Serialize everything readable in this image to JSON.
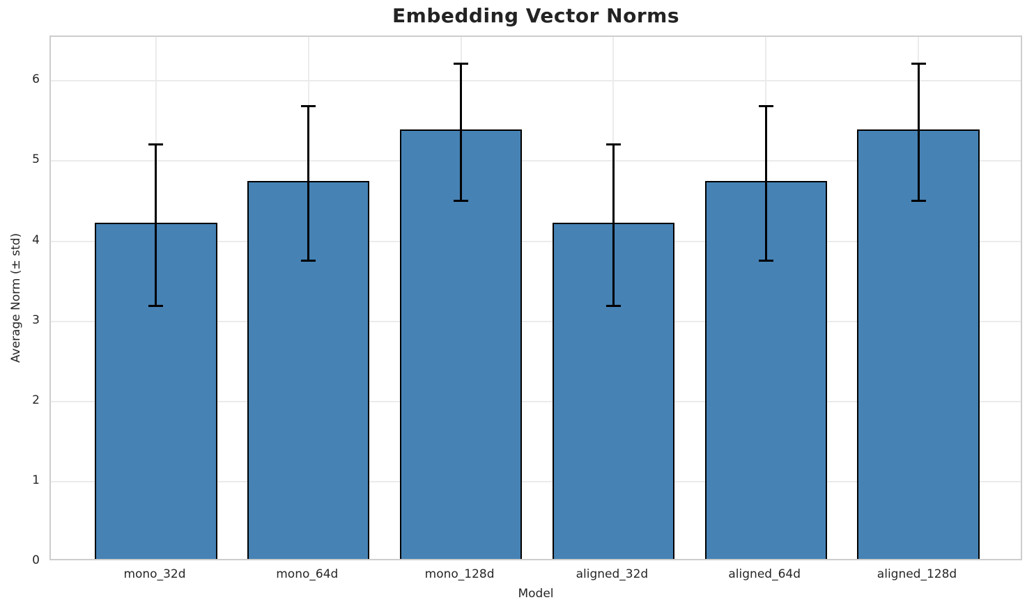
{
  "chart_data": {
    "type": "bar",
    "title": "Embedding Vector Norms",
    "xlabel": "Model",
    "ylabel": "Average Norm (± std)",
    "categories": [
      "mono_32d",
      "mono_64d",
      "mono_128d",
      "aligned_32d",
      "aligned_64d",
      "aligned_128d"
    ],
    "series": [
      {
        "name": "Average Norm",
        "values": [
          4.2,
          4.72,
          5.36,
          4.2,
          4.72,
          5.36
        ],
        "errors": [
          1.02,
          0.98,
          0.87,
          1.02,
          0.98,
          0.87
        ]
      }
    ],
    "yticks": [
      0,
      1,
      2,
      3,
      4,
      5,
      6
    ],
    "ylim": [
      0,
      6.55
    ],
    "grid": "both",
    "legend": "none",
    "bar_color": "#4682b4",
    "bar_edge_color": "#000000",
    "error_color": "#000000",
    "grid_color": "#ebebeb",
    "spine_color": "#cdcdcd",
    "text_color": "#262626"
  }
}
